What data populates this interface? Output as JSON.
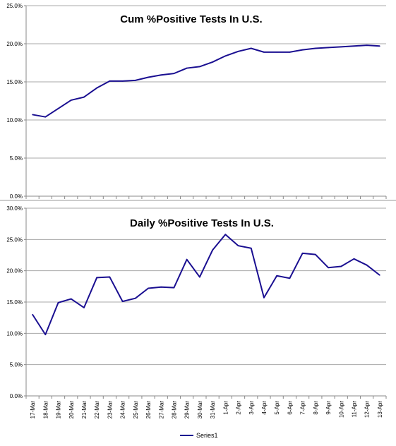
{
  "chart_data": [
    {
      "type": "line",
      "title": "Cum %Positive Tests In U.S.",
      "ylim": [
        0,
        25
      ],
      "y_ticks": [
        "0.0%",
        "5.0%",
        "10.0%",
        "15.0%",
        "20.0%",
        "25.0%"
      ],
      "grid": "horizontal",
      "series": [
        {
          "name": "Series1",
          "color": "#1a0f91",
          "values": [
            10.7,
            10.4,
            11.5,
            12.6,
            13.0,
            14.2,
            15.1,
            15.1,
            15.2,
            15.6,
            15.9,
            16.1,
            16.8,
            17.0,
            17.6,
            18.4,
            19.0,
            19.4,
            18.9,
            18.9,
            18.9,
            19.2,
            19.4,
            19.5,
            19.6,
            19.7,
            19.8,
            19.7
          ]
        }
      ]
    },
    {
      "type": "line",
      "title": "Daily %Positive Tests In U.S.",
      "ylim": [
        0,
        30
      ],
      "y_ticks": [
        "0.0%",
        "5.0%",
        "10.0%",
        "15.0%",
        "20.0%",
        "25.0%",
        "30.0%"
      ],
      "grid": "horizontal",
      "categories": [
        "17-Mar",
        "18-Mar",
        "19-Mar",
        "20-Mar",
        "21-Mar",
        "22-Mar",
        "23-Mar",
        "24-Mar",
        "25-Mar",
        "26-Mar",
        "27-Mar",
        "28-Mar",
        "29-Mar",
        "30-Mar",
        "31-Mar",
        "1-Apr",
        "2-Apr",
        "3-Apr",
        "4-Apr",
        "5-Apr",
        "6-Apr",
        "7-Apr",
        "8-Apr",
        "9-Apr",
        "10-Apr",
        "11-Apr",
        "12-Apr",
        "13-Apr"
      ],
      "legend": "bottom",
      "series": [
        {
          "name": "Series1",
          "color": "#1a0f91",
          "values": [
            13.0,
            9.8,
            14.9,
            15.5,
            14.1,
            18.9,
            19.0,
            15.1,
            15.6,
            17.2,
            17.4,
            17.3,
            21.8,
            19.0,
            23.3,
            25.8,
            24.0,
            23.6,
            15.7,
            19.2,
            18.8,
            22.8,
            22.6,
            20.5,
            20.7,
            21.9,
            20.9,
            19.3
          ]
        }
      ]
    }
  ]
}
